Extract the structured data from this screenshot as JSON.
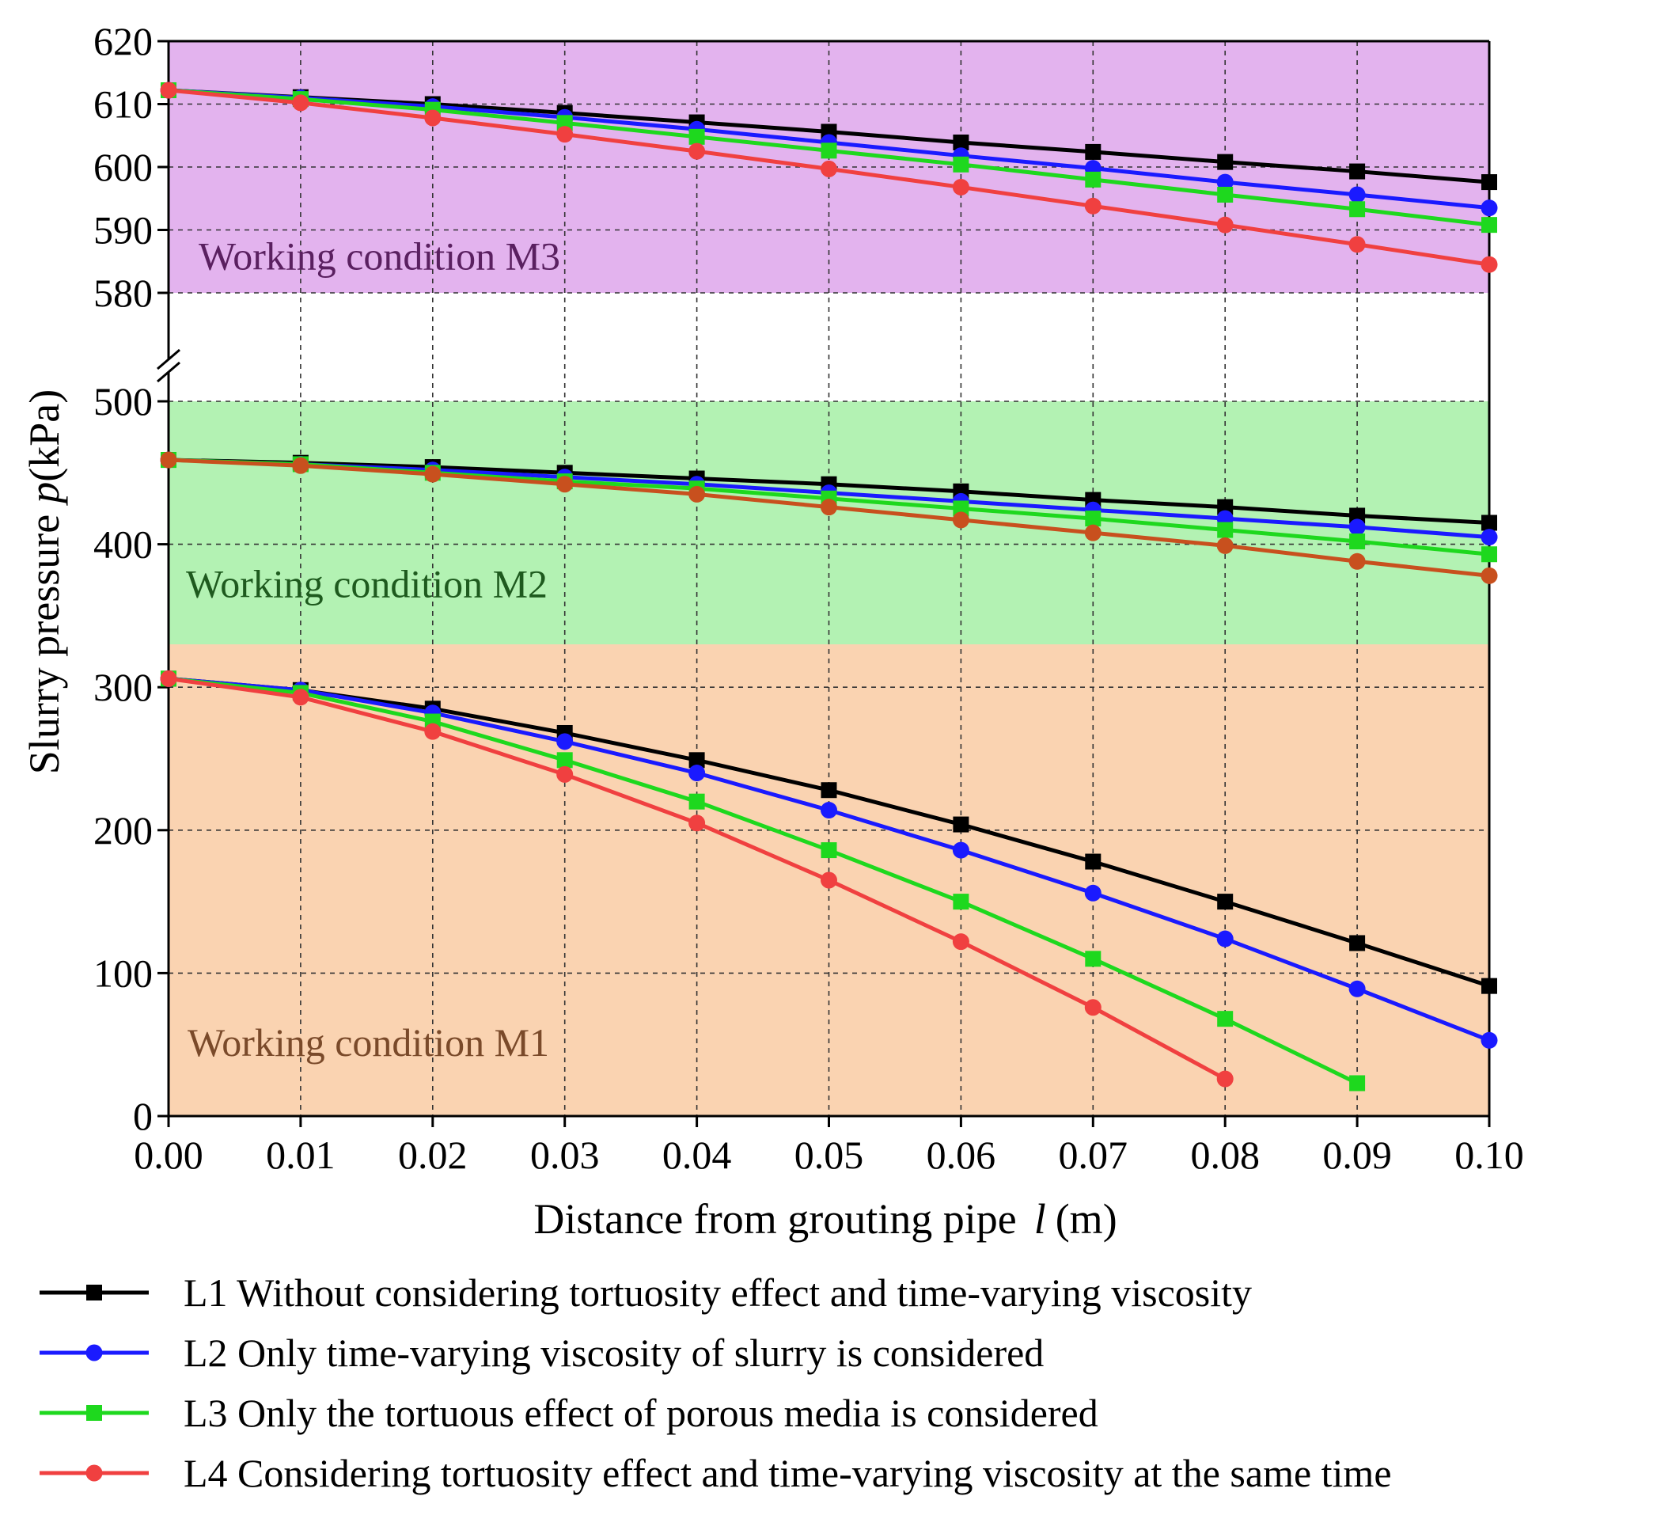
{
  "chart_data": {
    "type": "line",
    "title": "",
    "xlabel": "Distance from grouting pipe  l (m)",
    "xlabel_prefix": "Distance from grouting pipe",
    "xlabel_var": "l",
    "xlabel_unit": "(m)",
    "ylabel": "Slurry pressure p(kPa)",
    "ylabel_prefix": "Slurry pressure",
    "ylabel_var": "p",
    "ylabel_unit": "(kPa)",
    "xlim": [
      0,
      0.1
    ],
    "grid": true,
    "y_axis_break": {
      "lower_max": 500,
      "upper_min": 580
    },
    "y_lower_range": [
      0,
      500
    ],
    "y_upper_range": [
      580,
      620
    ],
    "x_ticks": [
      "0.00",
      "0.01",
      "0.02",
      "0.03",
      "0.04",
      "0.05",
      "0.06",
      "0.07",
      "0.08",
      "0.09",
      "0.10"
    ],
    "y_ticks_lower": [
      0,
      100,
      200,
      300,
      400,
      500
    ],
    "y_ticks_upper": [
      580,
      590,
      600,
      610,
      620
    ],
    "x": [
      0.0,
      0.01,
      0.02,
      0.03,
      0.04,
      0.05,
      0.06,
      0.07,
      0.08,
      0.09,
      0.1
    ],
    "regions": [
      {
        "name": "Working condition M1",
        "range": [
          0,
          330
        ],
        "color": "#fad3b1",
        "label_color": "#7a4a2a"
      },
      {
        "name": "Working condition M2",
        "range": [
          330,
          500
        ],
        "color": "#b3f2b3",
        "label_color": "#1e5a1e"
      },
      {
        "name": "Working condition M3",
        "range": [
          580,
          620
        ],
        "color": "#e3b3ee",
        "label_color": "#5a2060"
      }
    ],
    "series": [
      {
        "name": "L1 Without considering tortuosity effect and time-varying viscosity",
        "color": "#000000",
        "marker": "square",
        "M1": [
          306,
          298,
          285,
          268,
          249,
          228,
          204,
          178,
          150,
          121,
          91
        ],
        "M2": [
          459,
          457,
          454,
          450,
          446,
          442,
          437,
          431,
          426,
          420,
          415
        ],
        "M3": [
          612.2,
          611.1,
          610.0,
          608.6,
          607.1,
          605.6,
          603.9,
          602.4,
          600.8,
          599.3,
          597.6
        ]
      },
      {
        "name": "L2 Only time-varying viscosity of slurry is considered",
        "color": "#1a1aff",
        "marker": "circle",
        "M1": [
          306,
          298,
          282,
          262,
          240,
          214,
          186,
          156,
          124,
          89,
          53
        ],
        "M2": [
          459,
          456,
          452,
          447,
          442,
          436,
          430,
          424,
          418,
          412,
          405
        ],
        "M3": [
          612.2,
          611.0,
          609.6,
          607.9,
          606.0,
          603.9,
          601.8,
          599.8,
          597.6,
          595.6,
          593.5
        ]
      },
      {
        "name": "L3 Only the tortuous effect of porous media is considered",
        "color": "#1ed81e",
        "marker": "square",
        "M1": [
          306,
          296,
          276,
          249,
          220,
          186,
          150,
          110,
          68,
          23
        ],
        "M2": [
          459,
          456,
          450,
          444,
          439,
          432,
          425,
          418,
          410,
          402,
          393
        ],
        "M3": [
          612.2,
          610.8,
          609.1,
          607.0,
          604.8,
          602.6,
          600.4,
          598.0,
          595.6,
          593.3,
          590.8
        ]
      },
      {
        "name": "L4 Considering tortuosity effect and time-varying viscosity at the same time",
        "color": "#f04040",
        "marker": "circle",
        "M1": [
          306,
          293,
          269,
          239,
          205,
          165,
          122,
          76,
          26
        ],
        "M2": [
          459,
          455,
          449,
          442,
          435,
          426,
          417,
          408,
          399,
          388,
          378
        ],
        "M3": [
          612.2,
          610.2,
          607.8,
          605.2,
          602.5,
          599.7,
          596.8,
          593.8,
          590.8,
          587.7,
          584.5
        ],
        "M2_color": "#c8501e"
      }
    ]
  }
}
